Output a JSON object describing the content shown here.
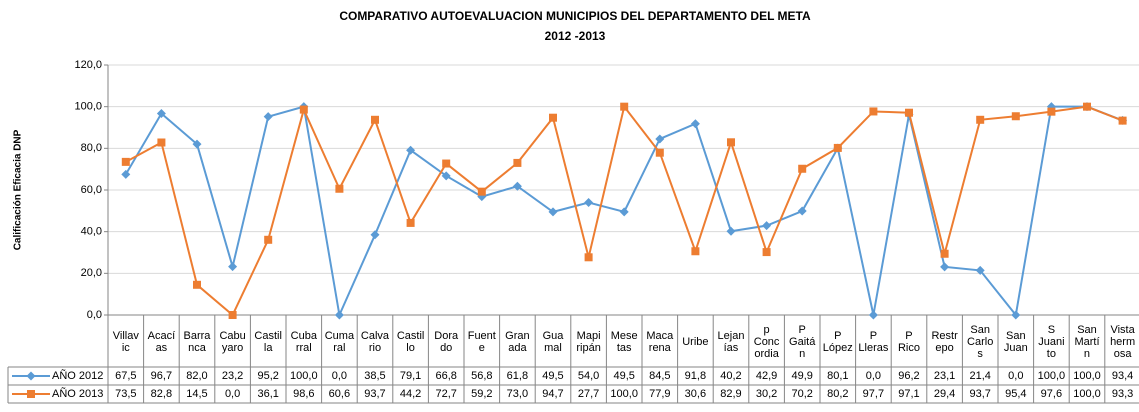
{
  "chart_data": {
    "type": "line",
    "title": "COMPARATIVO AUTOEVALUACION MUNICIPIOS DEL DEPARTAMENTO DEL META",
    "subtitle": "2012 -2013",
    "y_label": "Calificación Eficacia DNP",
    "categories": [
      "Villav\nic",
      "Acací\nas",
      "Barra\nnca",
      "Cabu\nyaro",
      "Castil\nla",
      "Cuba\nrral",
      "Cuma\nral",
      "Calva\nrio",
      "Castil\nlo",
      "Dora\ndo",
      "Fuent\ne",
      "Gran\nada",
      "Gua\nmal",
      "Mapi\nripán",
      "Mese\ntas",
      "Maca\nrena",
      "Uribe",
      "Lejan\nías",
      "p\nConc\nordia",
      "P\nGaitá\nn",
      "P\nLópez",
      "P\nLleras",
      "P\nRico",
      "Restr\nepo",
      "San\nCarlo\ns",
      "San\nJuan",
      "S\nJuani\nto",
      "San\nMartí\nn",
      "Vista\nherm\nosa"
    ],
    "series": [
      {
        "name": "AÑO 2012",
        "color": "#5b9bd5",
        "marker": "diamond",
        "values": [
          67.5,
          96.7,
          82.0,
          23.2,
          95.2,
          100.0,
          0.0,
          38.5,
          79.1,
          66.8,
          56.8,
          61.8,
          49.5,
          54.0,
          49.5,
          84.5,
          91.8,
          40.2,
          42.9,
          49.9,
          80.1,
          0.0,
          96.2,
          23.1,
          21.4,
          0.0,
          100.0,
          100.0,
          93.4
        ],
        "value_labels": [
          "67,5",
          "96,7",
          "82,0",
          "23,2",
          "95,2",
          "100,0",
          "0,0",
          "38,5",
          "79,1",
          "66,8",
          "56,8",
          "61,8",
          "49,5",
          "54,0",
          "49,5",
          "84,5",
          "91,8",
          "40,2",
          "42,9",
          "49,9",
          "80,1",
          "0,0",
          "96,2",
          "23,1",
          "21,4",
          "0,0",
          "100,0",
          "100,0",
          "93,4"
        ]
      },
      {
        "name": "AÑO 2013",
        "color": "#ed7d31",
        "marker": "square",
        "values": [
          73.5,
          82.8,
          14.5,
          0.0,
          36.1,
          98.6,
          60.6,
          93.7,
          44.2,
          72.7,
          59.2,
          73.0,
          94.7,
          27.7,
          100.0,
          77.9,
          30.6,
          82.9,
          30.2,
          70.2,
          80.2,
          97.7,
          97.1,
          29.4,
          93.7,
          95.4,
          97.6,
          100.0,
          93.3
        ],
        "value_labels": [
          "73,5",
          "82,8",
          "14,5",
          "0,0",
          "36,1",
          "98,6",
          "60,6",
          "93,7",
          "44,2",
          "72,7",
          "59,2",
          "73,0",
          "94,7",
          "27,7",
          "100,0",
          "77,9",
          "30,6",
          "82,9",
          "30,2",
          "70,2",
          "80,2",
          "97,7",
          "97,1",
          "29,4",
          "93,7",
          "95,4",
          "97,6",
          "100,0",
          "93,3"
        ]
      }
    ],
    "ylim": [
      0,
      120
    ],
    "yticks": [
      {
        "value": 0,
        "label": "0,0"
      },
      {
        "value": 20,
        "label": "20,0"
      },
      {
        "value": 40,
        "label": "40,0"
      },
      {
        "value": 60,
        "label": "60,0"
      },
      {
        "value": 80,
        "label": "80,0"
      },
      {
        "value": 100,
        "label": "100,0"
      },
      {
        "value": 120,
        "label": "120,0"
      }
    ],
    "grid": true
  }
}
